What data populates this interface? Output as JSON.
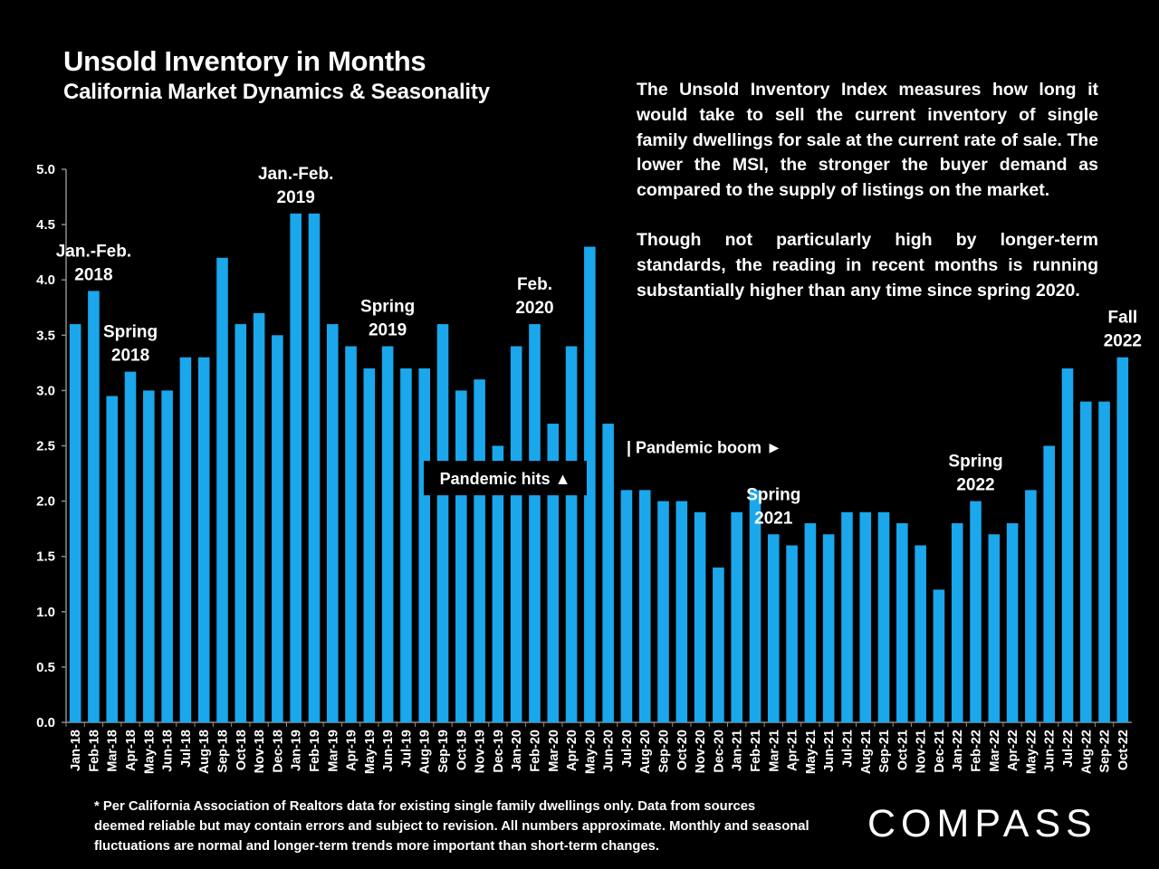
{
  "header": {
    "title": "Unsold Inventory in Months",
    "subtitle": "California Market Dynamics & Seasonality"
  },
  "description": {
    "paragraph1": "The Unsold Inventory Index measures how long it would take to sell the current inventory of single family dwellings for sale at the current rate of sale. The lower the MSI, the stronger the buyer demand as compared to the supply of listings on the market.",
    "paragraph2": "Though not particularly high by longer-term standards, the reading in recent months is running substantially higher than any time since spring 2020."
  },
  "footnote": "* Per California Association of Realtors data for existing single family dwellings only. Data from sources deemed reliable but may contain errors and subject to revision. All numbers approximate. Monthly and seasonal fluctuations are normal and longer-term trends more important than short-term changes.",
  "logo": {
    "text": "COMPASS"
  },
  "colors": {
    "bar": "#1aa7ec",
    "background": "#000000",
    "text": "#ffffff",
    "axis": "#8c8c8c"
  },
  "chart_data": {
    "type": "bar",
    "title": "Unsold Inventory in Months",
    "xlabel": "",
    "ylabel": "",
    "ylim": [
      0,
      5
    ],
    "yticks": [
      "0.0",
      "0.5",
      "1.0",
      "1.5",
      "2.0",
      "2.5",
      "3.0",
      "3.5",
      "4.0",
      "4.5",
      "5.0"
    ],
    "grid": false,
    "categories": [
      "Jan-18",
      "Feb-18",
      "Mar-18",
      "Apr-18",
      "May-18",
      "Jun-18",
      "Jul-18",
      "Aug-18",
      "Sep-18",
      "Oct-18",
      "Nov-18",
      "Dec-18",
      "Jan-19",
      "Feb-19",
      "Mar-19",
      "Apr-19",
      "May-19",
      "Jun-19",
      "Jul-19",
      "Aug-19",
      "Sep-19",
      "Oct-19",
      "Nov-19",
      "Dec-19",
      "Jan-20",
      "Feb-20",
      "Mar-20",
      "Apr-20",
      "May-20",
      "Jun-20",
      "Jul-20",
      "Aug-20",
      "Sep-20",
      "Oct-20",
      "Nov-20",
      "Dec-20",
      "Jan-21",
      "Feb-21",
      "Mar-21",
      "Apr-21",
      "May-21",
      "Jun-21",
      "Jul-21",
      "Aug-21",
      "Sep-21",
      "Oct-21",
      "Nov-21",
      "Dec-21",
      "Jan-22",
      "Feb-22",
      "Mar-22",
      "Apr-22",
      "May-22",
      "Jun-22",
      "Jul-22",
      "Aug-22",
      "Sep-22",
      "Oct-22"
    ],
    "values": [
      3.6,
      3.9,
      2.95,
      3.17,
      3.0,
      3.0,
      3.3,
      3.3,
      4.2,
      3.6,
      3.7,
      3.5,
      4.6,
      4.6,
      3.6,
      3.4,
      3.2,
      3.4,
      3.2,
      3.2,
      3.6,
      3.0,
      3.1,
      2.5,
      3.4,
      3.6,
      2.7,
      3.4,
      4.3,
      2.7,
      2.1,
      2.1,
      2.0,
      2.0,
      1.9,
      1.4,
      1.9,
      2.1,
      1.7,
      1.6,
      1.8,
      1.7,
      1.9,
      1.9,
      1.9,
      1.8,
      1.6,
      1.2,
      1.8,
      2.0,
      1.7,
      1.8,
      2.1,
      2.5,
      3.2,
      2.9,
      2.9,
      3.3
    ],
    "annotations": [
      {
        "category": "Feb-18",
        "lines": [
          "Jan.-Feb.",
          "2018"
        ]
      },
      {
        "category": "Apr-18",
        "lines": [
          "Spring",
          "2018"
        ]
      },
      {
        "category": "Jan-19",
        "lines": [
          "Jan.-Feb.",
          "2019"
        ]
      },
      {
        "category": "Jun-19",
        "lines": [
          "Spring",
          "2019"
        ]
      },
      {
        "category": "Feb-20",
        "lines": [
          "Feb.",
          "2020"
        ]
      },
      {
        "category": "Mar-21",
        "lines": [
          "Spring",
          "2021"
        ]
      },
      {
        "category": "Feb-22",
        "lines": [
          "Spring",
          "2022"
        ]
      },
      {
        "category": "Oct-22",
        "lines": [
          "Fall",
          "2022"
        ]
      }
    ],
    "callouts": {
      "pandemic_hits": "Pandemic hits ▲",
      "pandemic_boom": "| Pandemic boom ►"
    }
  }
}
